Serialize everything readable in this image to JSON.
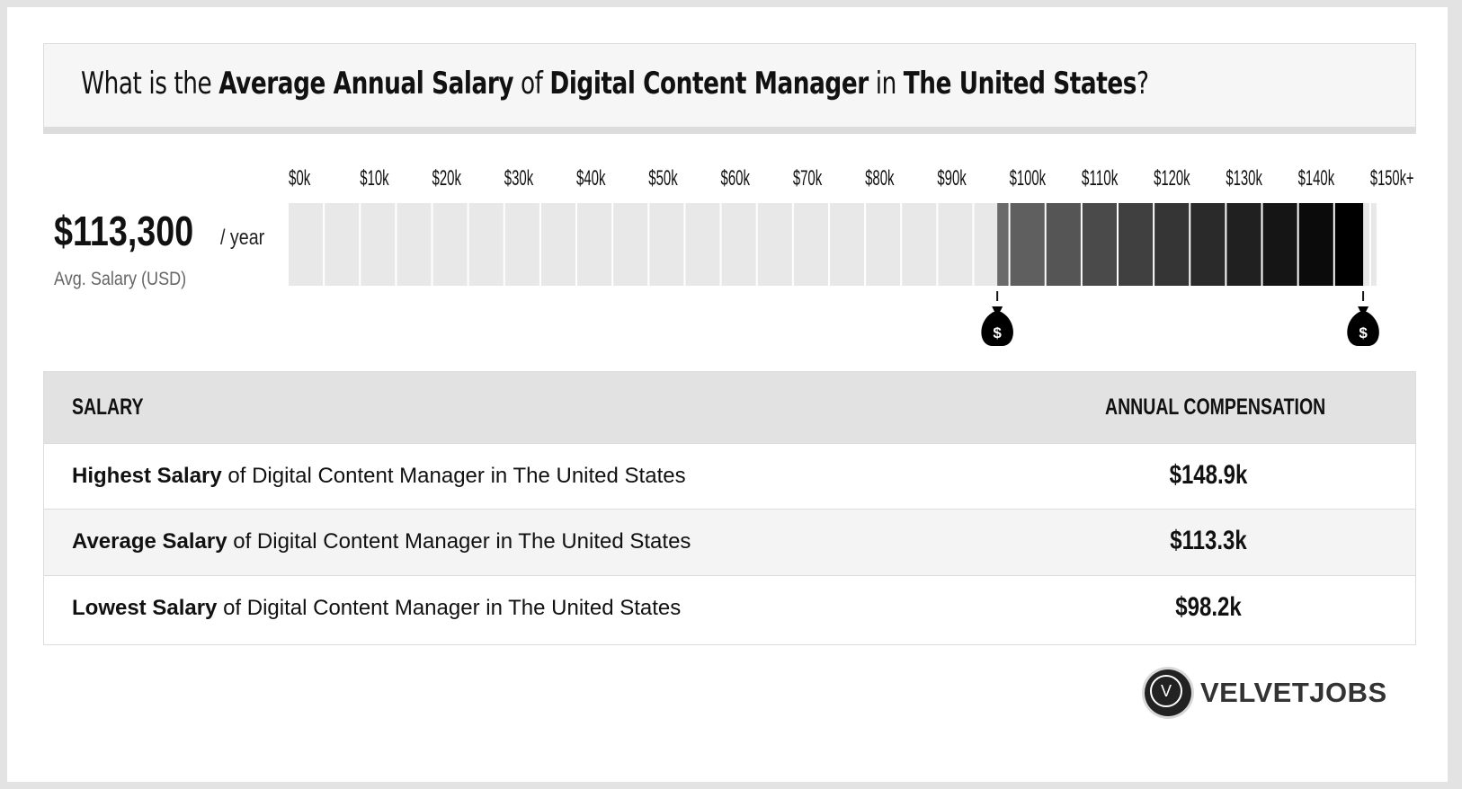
{
  "headline": {
    "prefix": "What is the ",
    "metric": "Average Annual Salary",
    "of": " of ",
    "job": "Digital Content Manager",
    "in": " in ",
    "location": "The United States",
    "suffix": "?"
  },
  "summary": {
    "salary": "$113,300",
    "unit": "/ year",
    "caption": "Avg. Salary (USD)"
  },
  "chart_data": {
    "type": "bar",
    "orientation": "horizontal-range",
    "x_ticks": [
      "$0k",
      "$10k",
      "$20k",
      "$30k",
      "$40k",
      "$50k",
      "$60k",
      "$70k",
      "$80k",
      "$90k",
      "$100k",
      "$110k",
      "$120k",
      "$130k",
      "$140k",
      "$150k+"
    ],
    "xlim": [
      0,
      150
    ],
    "range_low": 98.2,
    "range_high": 148.9,
    "average": 113.3,
    "unit": "thousand USD per year",
    "markers": [
      "money-bag-icon",
      "money-bag-icon"
    ],
    "colors": {
      "empty": "#e8e8e8",
      "range_start": "#6a6a6a",
      "range_end": "#000000"
    }
  },
  "table": {
    "headers": [
      "SALARY",
      "ANNUAL COMPENSATION"
    ],
    "rows": [
      {
        "bold": "Highest Salary",
        "rest": " of Digital Content Manager in The United States",
        "value": "$148.9k"
      },
      {
        "bold": "Average Salary",
        "rest": " of Digital Content Manager in The United States",
        "value": "$113.3k"
      },
      {
        "bold": "Lowest Salary",
        "rest": " of Digital Content Manager in The United States",
        "value": "$98.2k"
      }
    ]
  },
  "logo": {
    "mark": "V",
    "name": "VELVETJOBS"
  }
}
